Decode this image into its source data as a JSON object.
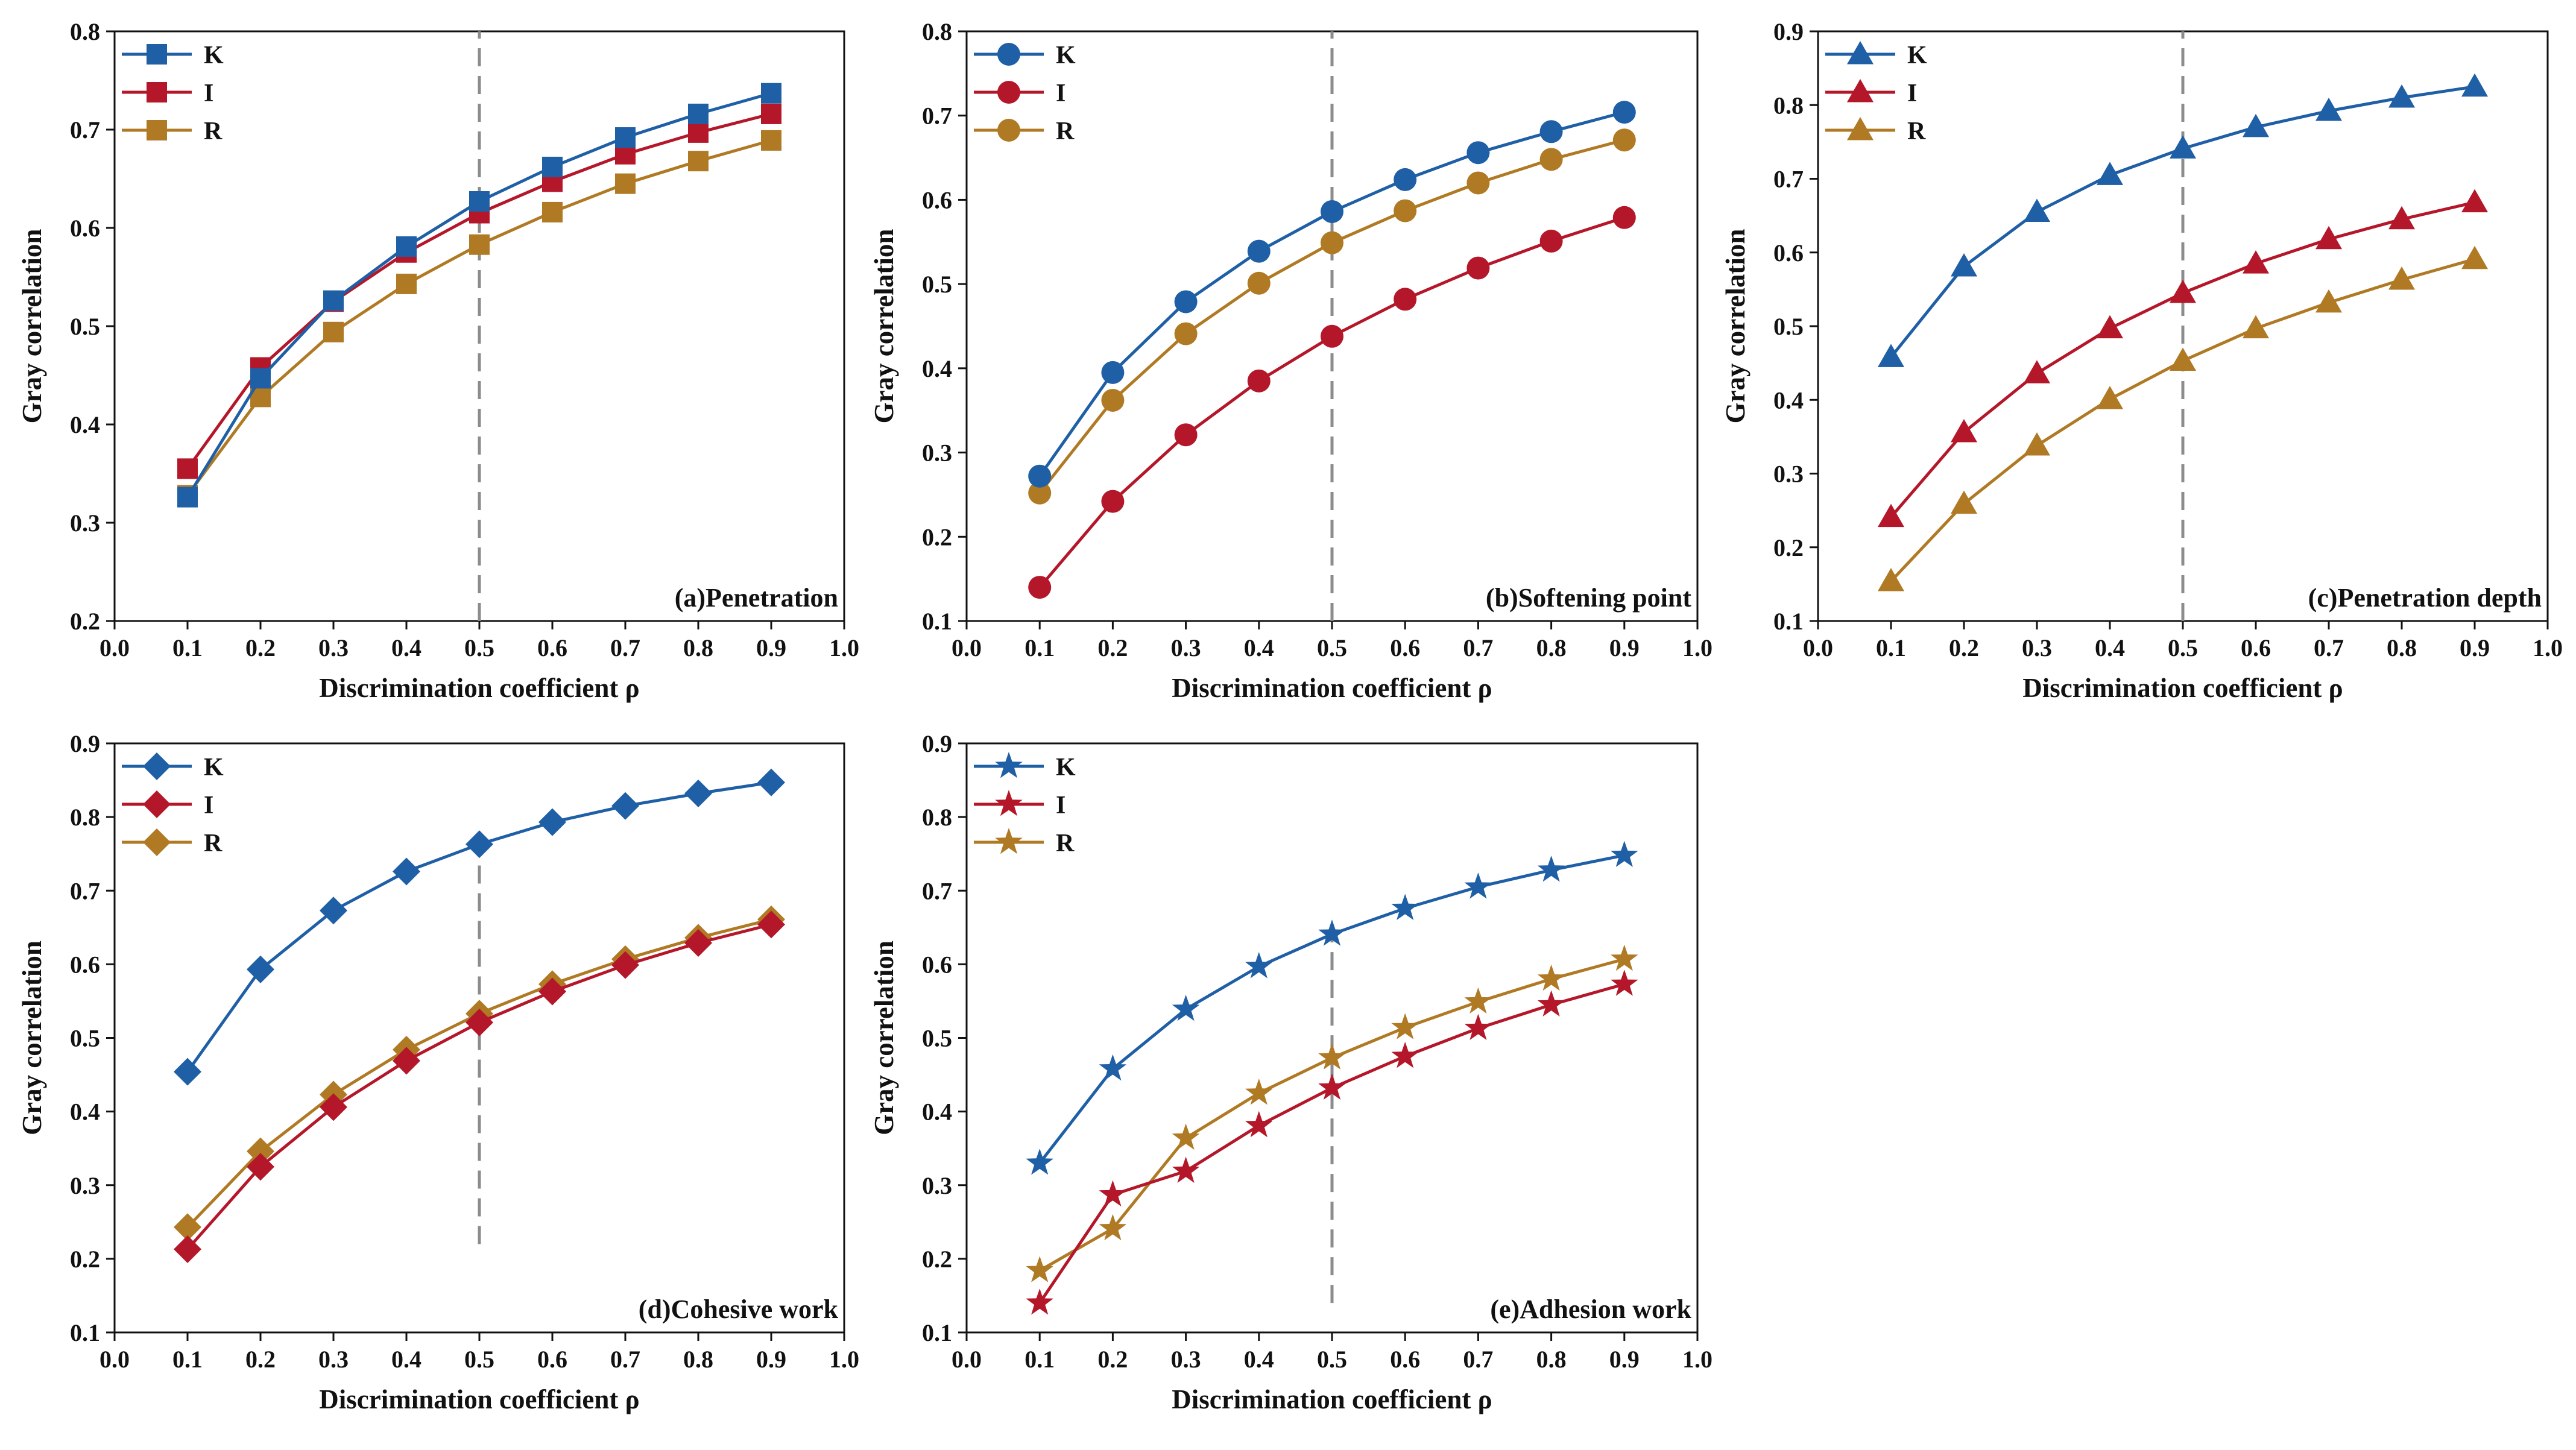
{
  "colors": {
    "K": "#1f5fa6",
    "I": "#b5172a",
    "R": "#b07a24",
    "axis": "#111111",
    "reference_line": "#8c8c8c"
  },
  "chart_data": [
    {
      "type": "line",
      "title": "(a)Penetration",
      "xlabel": "Discrimination coefficient ρ",
      "ylabel": "Gray correlation",
      "xlim": [
        0.0,
        1.0
      ],
      "ylim": [
        0.2,
        0.8
      ],
      "xticks": [
        "0.0",
        "0.1",
        "0.2",
        "0.3",
        "0.4",
        "0.5",
        "0.6",
        "0.7",
        "0.8",
        "0.9",
        "1.0"
      ],
      "yticks": [
        "0.2",
        "0.3",
        "0.4",
        "0.5",
        "0.6",
        "0.7",
        "0.8"
      ],
      "marker": "square",
      "legend_position": "top-left",
      "reference_line_x": 0.5,
      "x": [
        0.1,
        0.2,
        0.3,
        0.4,
        0.5,
        0.6,
        0.7,
        0.8,
        0.9
      ],
      "series": [
        {
          "name": "K",
          "values": [
            0.326,
            0.447,
            0.526,
            0.581,
            0.627,
            0.662,
            0.692,
            0.716,
            0.737
          ]
        },
        {
          "name": "I",
          "values": [
            0.355,
            0.458,
            0.525,
            0.575,
            0.615,
            0.647,
            0.675,
            0.697,
            0.716
          ]
        },
        {
          "name": "R",
          "values": [
            0.328,
            0.428,
            0.494,
            0.543,
            0.583,
            0.616,
            0.645,
            0.668,
            0.689
          ]
        }
      ]
    },
    {
      "type": "line",
      "title": "(b)Softening point",
      "xlabel": "Discrimination coefficient ρ",
      "ylabel": "Gray correlation",
      "xlim": [
        0.0,
        1.0
      ],
      "ylim": [
        0.1,
        0.8
      ],
      "xticks": [
        "0.0",
        "0.1",
        "0.2",
        "0.3",
        "0.4",
        "0.5",
        "0.6",
        "0.7",
        "0.8",
        "0.9",
        "1.0"
      ],
      "yticks": [
        "0.1",
        "0.2",
        "0.3",
        "0.4",
        "0.5",
        "0.6",
        "0.7",
        "0.8"
      ],
      "marker": "circle",
      "legend_position": "top-left",
      "reference_line_x": 0.5,
      "x": [
        0.1,
        0.2,
        0.3,
        0.4,
        0.5,
        0.6,
        0.7,
        0.8,
        0.9
      ],
      "series": [
        {
          "name": "K",
          "values": [
            0.272,
            0.395,
            0.479,
            0.539,
            0.586,
            0.624,
            0.656,
            0.681,
            0.704
          ]
        },
        {
          "name": "I",
          "values": [
            0.14,
            0.242,
            0.321,
            0.385,
            0.438,
            0.482,
            0.519,
            0.551,
            0.579
          ]
        },
        {
          "name": "R",
          "values": [
            0.252,
            0.362,
            0.441,
            0.501,
            0.549,
            0.587,
            0.62,
            0.648,
            0.671
          ]
        }
      ]
    },
    {
      "type": "line",
      "title": "(c)Penetration depth",
      "xlabel": "Discrimination coefficient ρ",
      "ylabel": "Gray correlation",
      "xlim": [
        0.0,
        1.0
      ],
      "ylim": [
        0.1,
        0.9
      ],
      "xticks": [
        "0.0",
        "0.1",
        "0.2",
        "0.3",
        "0.4",
        "0.5",
        "0.6",
        "0.7",
        "0.8",
        "0.9",
        "1.0"
      ],
      "yticks": [
        "0.1",
        "0.2",
        "0.3",
        "0.4",
        "0.5",
        "0.6",
        "0.7",
        "0.8",
        "0.9"
      ],
      "marker": "triangle",
      "legend_position": "top-left",
      "reference_line_x": 0.5,
      "x": [
        0.1,
        0.2,
        0.3,
        0.4,
        0.5,
        0.6,
        0.7,
        0.8,
        0.9
      ],
      "series": [
        {
          "name": "K",
          "values": [
            0.458,
            0.581,
            0.655,
            0.705,
            0.741,
            0.77,
            0.792,
            0.81,
            0.825
          ]
        },
        {
          "name": "I",
          "values": [
            0.241,
            0.356,
            0.436,
            0.497,
            0.545,
            0.585,
            0.618,
            0.645,
            0.668
          ]
        },
        {
          "name": "R",
          "values": [
            0.154,
            0.259,
            0.338,
            0.401,
            0.453,
            0.497,
            0.532,
            0.563,
            0.591
          ]
        }
      ]
    },
    {
      "type": "line",
      "title": "(d)Cohesive work",
      "xlabel": "Discrimination coefficient ρ",
      "ylabel": "Gray correlation",
      "xlim": [
        0.0,
        1.0
      ],
      "ylim": [
        0.1,
        0.9
      ],
      "xticks": [
        "0.0",
        "0.1",
        "0.2",
        "0.3",
        "0.4",
        "0.5",
        "0.6",
        "0.7",
        "0.8",
        "0.9",
        "1.0"
      ],
      "yticks": [
        "0.1",
        "0.2",
        "0.3",
        "0.4",
        "0.5",
        "0.6",
        "0.7",
        "0.8",
        "0.9"
      ],
      "marker": "diamond",
      "legend_position": "top-left",
      "reference_line_x": 0.5,
      "reference_line_y_range": [
        0.22,
        0.75
      ],
      "x": [
        0.1,
        0.2,
        0.3,
        0.4,
        0.5,
        0.6,
        0.7,
        0.8,
        0.9
      ],
      "series": [
        {
          "name": "K",
          "values": [
            0.454,
            0.593,
            0.673,
            0.726,
            0.763,
            0.793,
            0.815,
            0.832,
            0.847
          ]
        },
        {
          "name": "I",
          "values": [
            0.213,
            0.325,
            0.406,
            0.469,
            0.521,
            0.563,
            0.599,
            0.629,
            0.654
          ]
        },
        {
          "name": "R",
          "values": [
            0.243,
            0.346,
            0.423,
            0.484,
            0.533,
            0.573,
            0.607,
            0.636,
            0.661
          ]
        }
      ]
    },
    {
      "type": "line",
      "title": "(e)Adhesion work",
      "xlabel": "Discrimination coefficient ρ",
      "ylabel": "Gray correlation",
      "xlim": [
        0.0,
        1.0
      ],
      "ylim": [
        0.1,
        0.9
      ],
      "xticks": [
        "0.0",
        "0.1",
        "0.2",
        "0.3",
        "0.4",
        "0.5",
        "0.6",
        "0.7",
        "0.8",
        "0.9",
        "1.0"
      ],
      "yticks": [
        "0.1",
        "0.2",
        "0.3",
        "0.4",
        "0.5",
        "0.6",
        "0.7",
        "0.8",
        "0.9"
      ],
      "marker": "star",
      "legend_position": "top-left",
      "reference_line_x": 0.5,
      "reference_line_y_range": [
        0.14,
        0.64
      ],
      "x": [
        0.1,
        0.2,
        0.3,
        0.4,
        0.5,
        0.6,
        0.7,
        0.8,
        0.9
      ],
      "series": [
        {
          "name": "K",
          "values": [
            0.33,
            0.458,
            0.539,
            0.597,
            0.641,
            0.676,
            0.705,
            0.728,
            0.748
          ]
        },
        {
          "name": "I",
          "values": [
            0.14,
            0.287,
            0.319,
            0.381,
            0.432,
            0.475,
            0.513,
            0.545,
            0.573
          ]
        },
        {
          "name": "R",
          "values": [
            0.184,
            0.241,
            0.364,
            0.425,
            0.473,
            0.514,
            0.549,
            0.58,
            0.607
          ]
        }
      ]
    }
  ]
}
